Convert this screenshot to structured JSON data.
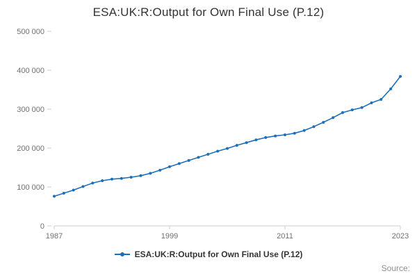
{
  "title": "ESA:UK:R:Output for Own Final Use (P.12)",
  "legend": {
    "label": "ESA:UK:R:Output for Own Final Use (P.12)"
  },
  "source_label": "Source:",
  "colors": {
    "line": "#1d70b8",
    "axis": "#cccccc",
    "tick_text": "#707070",
    "title_text": "#333333",
    "legend_text": "#333333",
    "source_text": "#8f8f8f"
  },
  "chart_data": {
    "type": "line",
    "title": "ESA:UK:R:Output for Own Final Use (P.12)",
    "xlabel": "",
    "ylabel": "",
    "x": [
      1987,
      1988,
      1989,
      1990,
      1991,
      1992,
      1993,
      1994,
      1995,
      1996,
      1997,
      1998,
      1999,
      2000,
      2001,
      2002,
      2003,
      2004,
      2005,
      2006,
      2007,
      2008,
      2009,
      2010,
      2011,
      2012,
      2013,
      2014,
      2015,
      2016,
      2017,
      2018,
      2019,
      2020,
      2021,
      2022,
      2023
    ],
    "series": [
      {
        "name": "ESA:UK:R:Output for Own Final Use (P.12)",
        "color": "#1d70b8",
        "marker": "circle",
        "values": [
          76000,
          84000,
          92000,
          101000,
          110000,
          116000,
          120000,
          122000,
          125000,
          129000,
          135000,
          143000,
          152000,
          160000,
          168000,
          176000,
          184000,
          192000,
          199000,
          207000,
          214000,
          221000,
          227000,
          231000,
          234000,
          238000,
          245000,
          255000,
          266000,
          278000,
          291000,
          298000,
          304000,
          316000,
          325000,
          352000,
          384000
        ]
      }
    ],
    "ylim": [
      0,
      500000
    ],
    "yticks": {
      "values": [
        0,
        100000,
        200000,
        300000,
        400000,
        500000
      ],
      "labels": [
        "0",
        "100 000",
        "200 000",
        "300 000",
        "400 000",
        "500 000"
      ]
    },
    "xticks": {
      "values": [
        1987,
        1999,
        2011,
        2023
      ],
      "labels": [
        "1987",
        "1999",
        "2011",
        "2023"
      ]
    },
    "grid": false,
    "legend_position": "bottom"
  }
}
